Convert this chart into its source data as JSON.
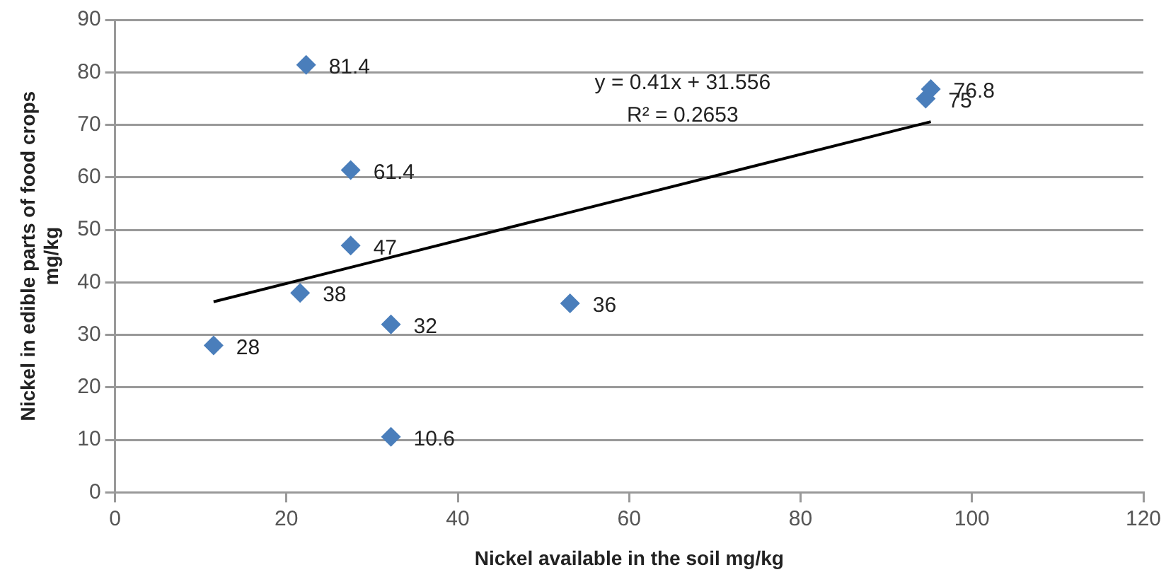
{
  "chart_data": {
    "type": "scatter",
    "xlabel": "Nickel available in the soil mg/kg",
    "ylabel": "Nickel in edible parts of food crops mg/kg",
    "series": [
      {
        "color": "#4a7ebb",
        "marker": "diamond",
        "x": [
          22.3,
          27.5,
          27.5,
          21.6,
          32.2,
          32.2,
          11.5,
          53.1,
          94.6,
          95.2
        ],
        "values": [
          81.4,
          61.4,
          47,
          38,
          32,
          10.6,
          28,
          36,
          75,
          76.8
        ],
        "value_labels": [
          "81.4",
          "61.4",
          "47",
          "38",
          "32",
          "10.6",
          "28",
          "36",
          "75",
          "76.8"
        ]
      },
      {
        "type": "line",
        "color": "#000000",
        "marker": "none",
        "x": [
          11.5,
          95.2
        ],
        "values": [
          36.3,
          70.6
        ]
      }
    ],
    "annotations": [
      "y = 0.41x + 31.556",
      "R² = 0.2653"
    ],
    "xlim": [
      0,
      120
    ],
    "xticks": [
      0,
      20,
      40,
      60,
      80,
      100,
      120
    ],
    "ylim": [
      0,
      90
    ],
    "yticks": [
      0,
      10,
      20,
      30,
      40,
      50,
      60,
      70,
      80,
      90
    ],
    "grid": "y",
    "legend": false
  }
}
